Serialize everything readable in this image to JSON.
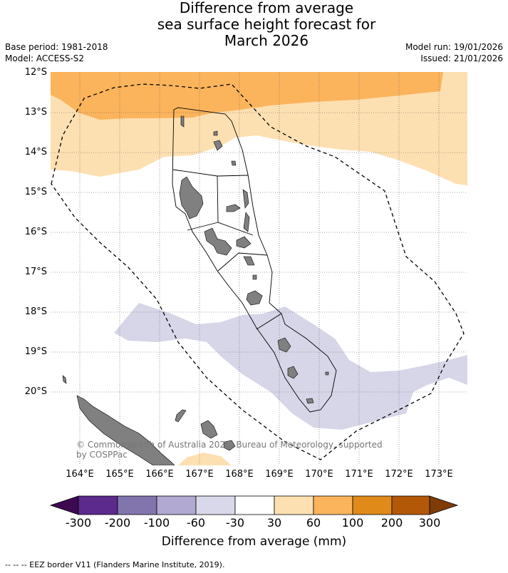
{
  "title": {
    "line1": "Difference from average",
    "line2": "sea surface height forecast for",
    "line3": "March 2026"
  },
  "meta": {
    "base_period": "Base period: 1981-2018",
    "model": "Model: ACCESS-S2",
    "model_run": "Model run: 19/01/2026",
    "issued": "Issued: 21/01/2026"
  },
  "map": {
    "lat_ticks": [
      "12°S",
      "13°S",
      "14°S",
      "15°S",
      "16°S",
      "17°S",
      "18°S",
      "19°S",
      "20°S"
    ],
    "lon_ticks": [
      "164°E",
      "165°E",
      "166°E",
      "167°E",
      "168°E",
      "169°E",
      "170°E",
      "171°E",
      "172°E",
      "173°E"
    ],
    "copyright": "© Commonwealth of Australia 2026, Bureau of Meteorology, supported by COSPPac",
    "colors": {
      "land": "#808080",
      "gt100": "#e08a1a",
      "60_100": "#fbb45c",
      "30_60": "#fde0b2",
      "m60_m30": "#d6d6e8",
      "grid": "#555555"
    }
  },
  "colorbar": {
    "labels": [
      "-300",
      "-200",
      "-100",
      "-60",
      "-30",
      "30",
      "60",
      "100",
      "200",
      "300"
    ],
    "colors": [
      "#3d0a51",
      "#5b2a8c",
      "#8275ae",
      "#b1a9d1",
      "#d8d8ea",
      "#ffffff",
      "#fde0b2",
      "#fbb45c",
      "#e08a1a",
      "#b35806",
      "#7f3b08"
    ],
    "title": "Difference from average (mm)"
  },
  "footnote": "-- -- -- EEZ border V11 (Flanders Marine Institute, 2019)."
}
